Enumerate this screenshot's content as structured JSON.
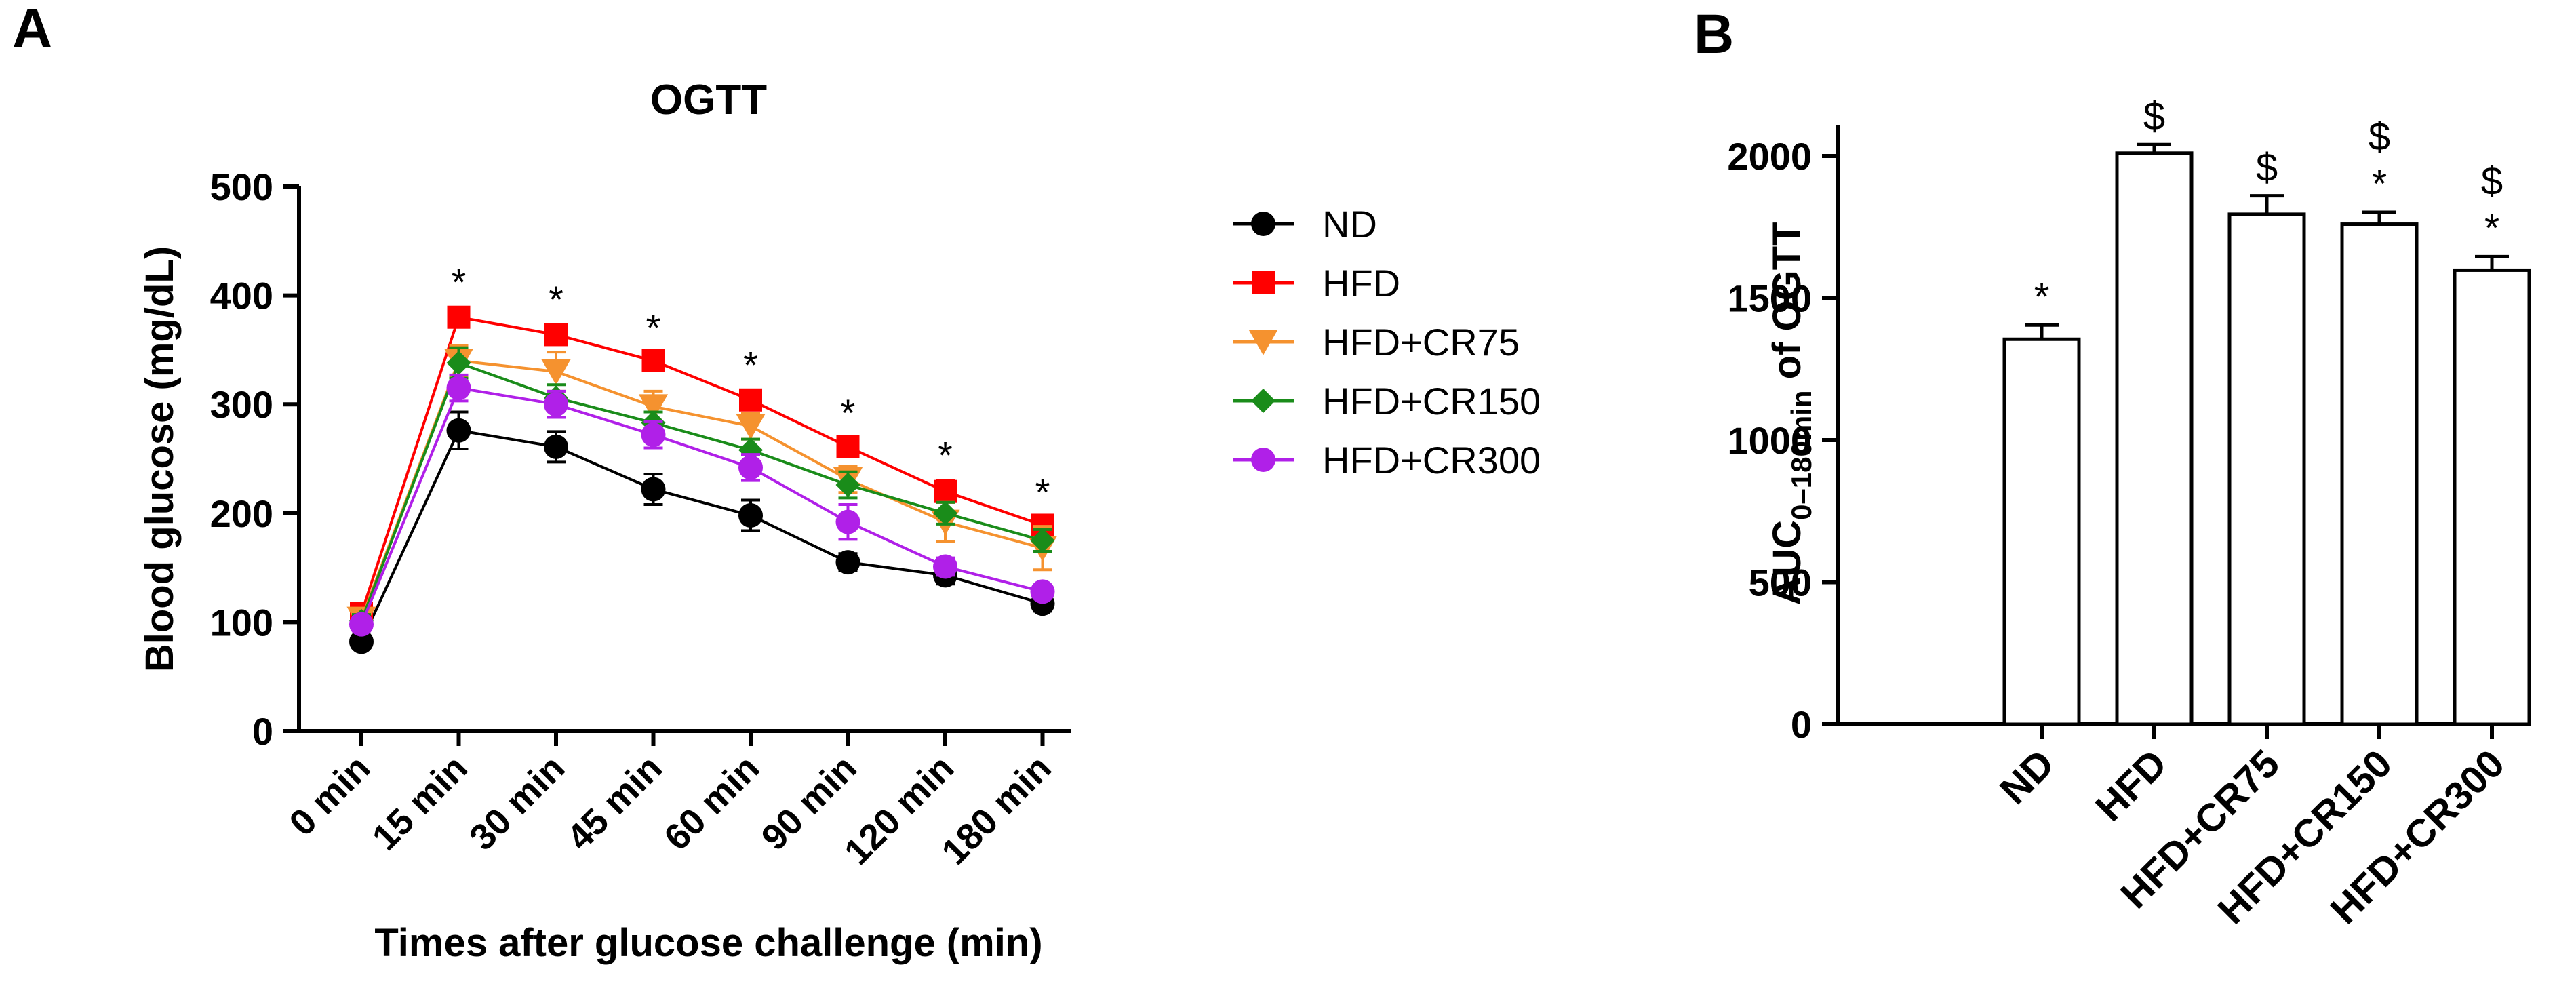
{
  "panel_labels": {
    "a": "A",
    "b": "B"
  },
  "chart_data": [
    {
      "type": "line",
      "title": "OGTT",
      "xlabel": "Times after glucose challenge (min)",
      "ylabel": "Blood glucose (mg/dL)",
      "categories": [
        "0 min",
        "15 min",
        "30 min",
        "45 min",
        "60 min",
        "90 min",
        "120 min",
        "180 min"
      ],
      "ylim": [
        0,
        500
      ],
      "yticks": [
        0,
        100,
        200,
        300,
        400,
        500
      ],
      "series": [
        {
          "name": "ND",
          "color": "#000000",
          "marker": "circle",
          "values": [
            82,
            276,
            261,
            222,
            198,
            155,
            143,
            117
          ],
          "errors": [
            4,
            17,
            14,
            14,
            14,
            8,
            8,
            7
          ]
        },
        {
          "name": "HFD",
          "color": "#ff0000",
          "marker": "square",
          "values": [
            108,
            380,
            364,
            340,
            304,
            261,
            220,
            189
          ],
          "errors": [
            6,
            9,
            9,
            7,
            9,
            8,
            10,
            7
          ]
        },
        {
          "name": "HFD+CR75",
          "color": "#f5922f",
          "marker": "triangle-down",
          "values": [
            103,
            340,
            330,
            298,
            280,
            231,
            192,
            168
          ],
          "errors": [
            8,
            14,
            18,
            14,
            12,
            12,
            18,
            20
          ]
        },
        {
          "name": "HFD+CR150",
          "color": "#1a8c1a",
          "marker": "diamond",
          "values": [
            101,
            338,
            306,
            283,
            258,
            226,
            200,
            175
          ],
          "errors": [
            6,
            14,
            12,
            10,
            10,
            12,
            10,
            10
          ]
        },
        {
          "name": "HFD+CR300",
          "color": "#b020e8",
          "marker": "circle",
          "values": [
            98,
            315,
            300,
            272,
            242,
            192,
            151,
            128
          ],
          "errors": [
            6,
            12,
            12,
            12,
            12,
            16,
            8,
            6
          ]
        }
      ],
      "annotations": [
        {
          "x": "15 min",
          "text": "*"
        },
        {
          "x": "30 min",
          "text": "*"
        },
        {
          "x": "45 min",
          "text": "*"
        },
        {
          "x": "60 min",
          "text": "*"
        },
        {
          "x": "90 min",
          "text": "*"
        },
        {
          "x": "120 min",
          "text": "*"
        },
        {
          "x": "180 min",
          "text": "*"
        }
      ]
    },
    {
      "type": "bar",
      "title": "",
      "xlabel": "",
      "ylabel_main": "AUC",
      "ylabel_sub": "0–180min",
      "ylabel_tail": " of OGTT",
      "categories": [
        "ND",
        "HFD",
        "HFD+CR75",
        "HFD+CR150",
        "HFD+CR300"
      ],
      "values": [
        1355,
        2010,
        1795,
        1760,
        1598
      ],
      "errors": [
        50,
        30,
        65,
        42,
        48
      ],
      "ylim": [
        0,
        2000
      ],
      "yticks": [
        0,
        500,
        1000,
        1500,
        2000
      ],
      "annotations": [
        {
          "category": "ND",
          "lines": [
            "*"
          ]
        },
        {
          "category": "HFD",
          "lines": [
            "$"
          ]
        },
        {
          "category": "HFD+CR75",
          "lines": [
            "$"
          ]
        },
        {
          "category": "HFD+CR150",
          "lines": [
            "$",
            "*"
          ]
        },
        {
          "category": "HFD+CR300",
          "lines": [
            "$",
            "*"
          ]
        }
      ]
    }
  ]
}
